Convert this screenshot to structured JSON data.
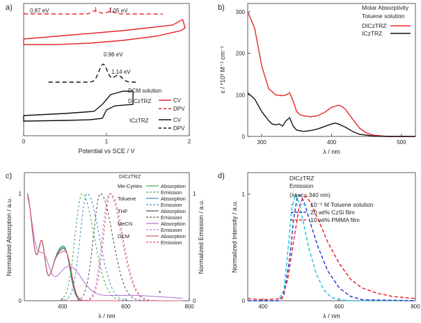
{
  "chart_data": [
    {
      "panel": "a)",
      "type": "line",
      "xlabel": "Potential vs SCE / V",
      "x_ticks": [
        "0",
        "1",
        "2"
      ],
      "xlim": [
        0,
        2
      ],
      "annotations": [
        "0.87 eV",
        "1.05 eV",
        "0.96 eV",
        "1.14 eV"
      ],
      "legend_title": "DCM solution",
      "legend": [
        {
          "compound": "DICzTRZ",
          "entries": [
            "CV",
            "DPV"
          ]
        },
        {
          "compound": "ICzTRZ",
          "entries": [
            "CV",
            "DPV"
          ]
        }
      ],
      "peaks": {
        "DICzTRZ_DPV": [
          0.87,
          1.05
        ],
        "ICzTRZ_DPV": [
          0.96,
          1.14
        ]
      },
      "colors": {
        "DICzTRZ": "#e8262b",
        "ICzTRZ": "#111111"
      }
    },
    {
      "panel": "b)",
      "type": "line",
      "title_lines": [
        "Molar Absorptivity",
        "Toluene solution"
      ],
      "xlabel": "λ / nm",
      "ylabel": "ε / *10³ M⁻¹ cm⁻¹",
      "x_ticks": [
        "300",
        "400",
        "500"
      ],
      "y_ticks": [
        "0",
        "100",
        "200",
        "300"
      ],
      "xlim": [
        280,
        520
      ],
      "ylim": [
        0,
        320
      ],
      "series": [
        {
          "name": "DICzTRZ",
          "color": "#e8262b",
          "x": [
            280,
            290,
            300,
            310,
            320,
            330,
            335,
            340,
            345,
            350,
            355,
            360,
            370,
            380,
            390,
            400,
            410,
            415,
            420,
            430,
            440,
            450,
            460,
            480,
            500,
            520
          ],
          "y": [
            300,
            260,
            170,
            115,
            100,
            98,
            100,
            105,
            85,
            60,
            52,
            50,
            47,
            50,
            58,
            70,
            75,
            72,
            65,
            42,
            20,
            8,
            3,
            0,
            0,
            0
          ]
        },
        {
          "name": "ICzTRZ",
          "color": "#111111",
          "x": [
            280,
            290,
            300,
            310,
            315,
            320,
            325,
            330,
            335,
            340,
            345,
            350,
            360,
            370,
            380,
            390,
            400,
            405,
            410,
            420,
            430,
            440,
            460,
            480,
            500,
            520
          ],
          "y": [
            105,
            90,
            60,
            38,
            30,
            28,
            30,
            25,
            38,
            45,
            25,
            15,
            12,
            14,
            18,
            24,
            30,
            32,
            30,
            22,
            12,
            5,
            1,
            0,
            0,
            0
          ]
        }
      ]
    },
    {
      "panel": "c)",
      "type": "line",
      "xlabel": "λ / nm",
      "ylabel_left": "Normalized Absorption / a.u.",
      "ylabel_right": "Normalized Emission / a.u.",
      "x_ticks": [
        "400",
        "600",
        "800"
      ],
      "y_ticks_left": [
        "0",
        "1"
      ],
      "y_ticks_right": [
        "0",
        "1"
      ],
      "xlim": [
        280,
        800
      ],
      "legend_title": "DICzTRZ",
      "legend": [
        {
          "solvent": "Me-CyHex",
          "color": "#4caf50",
          "entries": [
            "Absorption",
            "Emission"
          ]
        },
        {
          "solvent": "Toluene",
          "color": "#4a8fd4",
          "entries": [
            "Absorption",
            "Emission"
          ]
        },
        {
          "solvent": "THF",
          "color": "#555555",
          "entries": [
            "Absorption",
            "Emission"
          ]
        },
        {
          "solvent": "MeCN",
          "color": "#b57bd6",
          "entries": [
            "Absorption",
            "Emission"
          ]
        },
        {
          "solvent": "DCM",
          "color": "#e05a6a",
          "entries": [
            "Absorption",
            "Emission"
          ]
        }
      ],
      "emission_peaks_nm": [
        462,
        478,
        520,
        548,
        552
      ],
      "asterisk": "*"
    },
    {
      "panel": "d)",
      "type": "line",
      "title_lines": [
        "DICzTRZ",
        "Emission"
      ],
      "excitation": "(λexc= 340 nm)",
      "xlabel": "λ / nm",
      "ylabel": "Normalized Intensity / a.u.",
      "x_ticks": [
        "400",
        "600",
        "800"
      ],
      "y_ticks": [
        "0",
        "1"
      ],
      "xlim": [
        360,
        800
      ],
      "ylim": [
        0,
        1.1
      ],
      "series": [
        {
          "name": "10⁻⁵ M Toluene solution",
          "color": "#26c6da",
          "x": [
            360,
            440,
            455,
            465,
            475,
            485,
            495,
            505,
            520,
            540,
            560,
            580,
            600,
            630,
            800
          ],
          "y": [
            0,
            0,
            0.1,
            0.45,
            0.85,
            1.0,
            0.92,
            0.75,
            0.5,
            0.25,
            0.1,
            0.03,
            0.01,
            0,
            0
          ]
        },
        {
          "name": "20 wt% CzSi film",
          "color": "#2b3fd1",
          "x": [
            360,
            440,
            455,
            470,
            480,
            490,
            500,
            510,
            525,
            545,
            570,
            600,
            630,
            660,
            800
          ],
          "y": [
            0,
            0,
            0.05,
            0.4,
            0.75,
            0.98,
            0.99,
            0.9,
            0.72,
            0.5,
            0.28,
            0.12,
            0.04,
            0.01,
            0
          ]
        },
        {
          "name": "10 wt% PMMA film",
          "color": "#e8262b",
          "x": [
            360,
            400,
            450,
            465,
            480,
            495,
            505,
            515,
            530,
            550,
            570,
            600,
            630,
            660,
            700,
            740,
            800
          ],
          "y": [
            0.02,
            0.01,
            0.02,
            0.2,
            0.55,
            0.88,
            0.97,
            0.98,
            0.88,
            0.72,
            0.55,
            0.35,
            0.2,
            0.12,
            0.07,
            0.04,
            0.02
          ]
        }
      ]
    }
  ]
}
